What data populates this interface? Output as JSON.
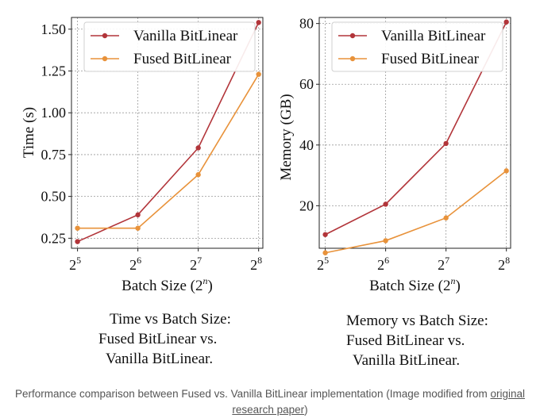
{
  "chart_data": [
    {
      "type": "line",
      "title": "Time vs Batch Size: Fused BitLinear vs. Vanilla BitLinear.",
      "xlabel": "Batch Size (2^n)",
      "ylabel": "Time (s)",
      "x_scale": "log2",
      "x": [
        5,
        6,
        7,
        8
      ],
      "x_tick_labels": [
        {
          "base": "2",
          "exp": "5"
        },
        {
          "base": "2",
          "exp": "6"
        },
        {
          "base": "2",
          "exp": "7"
        },
        {
          "base": "2",
          "exp": "8"
        }
      ],
      "ylim": [
        0.19,
        1.57
      ],
      "yticks": [
        0.25,
        0.5,
        0.75,
        1.0,
        1.25,
        1.5
      ],
      "ytick_labels": [
        "0.25",
        "0.50",
        "0.75",
        "1.00",
        "1.25",
        "1.50"
      ],
      "grid": true,
      "legend": "top-left",
      "series": [
        {
          "name": "Vanilla BitLinear",
          "color": "#b2353a",
          "values": [
            0.23,
            0.39,
            0.79,
            1.54
          ]
        },
        {
          "name": "Fused BitLinear",
          "color": "#e8923a",
          "values": [
            0.31,
            0.31,
            0.63,
            1.23
          ]
        }
      ]
    },
    {
      "type": "line",
      "title": "Memory vs Batch Size: Fused BitLinear vs. Vanilla BitLinear.",
      "xlabel": "Batch Size (2^n)",
      "ylabel": "Memory (GB)",
      "x_scale": "log2",
      "x": [
        5,
        6,
        7,
        8
      ],
      "x_tick_labels": [
        {
          "base": "2",
          "exp": "5"
        },
        {
          "base": "2",
          "exp": "6"
        },
        {
          "base": "2",
          "exp": "7"
        },
        {
          "base": "2",
          "exp": "8"
        }
      ],
      "ylim": [
        6,
        82
      ],
      "yticks": [
        20,
        40,
        60,
        80
      ],
      "ytick_labels": [
        "20",
        "40",
        "60",
        "80"
      ],
      "grid": true,
      "legend": "top-left",
      "series": [
        {
          "name": "Vanilla BitLinear",
          "color": "#b2353a",
          "values": [
            10.5,
            20.5,
            40.5,
            80.5
          ]
        },
        {
          "name": "Fused BitLinear",
          "color": "#e8923a",
          "values": [
            4.5,
            8.5,
            16,
            31.5
          ]
        }
      ]
    }
  ],
  "chart_titles": [
    [
      "Time vs Batch Size:",
      "Fused BitLinear vs.",
      "Vanilla BitLinear."
    ],
    [
      "Memory vs Batch Size:",
      "Fused BitLinear vs.",
      "Vanilla BitLinear."
    ]
  ],
  "xlabel_display": {
    "prefix": "Batch Size (2",
    "exp": "n",
    "suffix": ")"
  },
  "caption": {
    "text": "Performance comparison between Fused vs. Vanilla BitLinear implementation (Image modified from ",
    "link": "original research paper",
    "suffix": ")"
  }
}
